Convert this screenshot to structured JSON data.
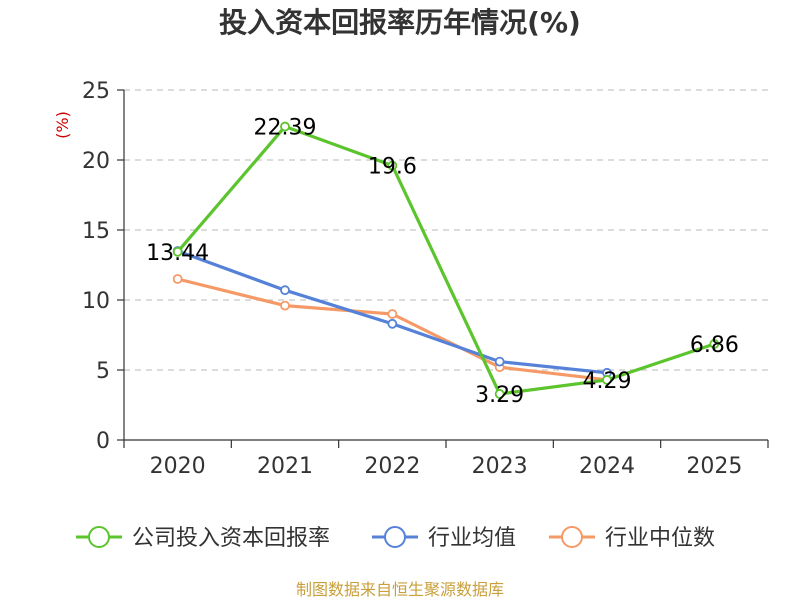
{
  "chart_data": {
    "type": "line",
    "title": "投入资本回报率历年情况(%)",
    "ylabel": "(%)",
    "xlabel": "",
    "categories": [
      "2020",
      "2021",
      "2022",
      "2023",
      "2024",
      "2025"
    ],
    "ylim": [
      0,
      25
    ],
    "yticks": [
      0,
      5,
      10,
      15,
      20,
      25
    ],
    "grid": true,
    "legend_position": "bottom",
    "series": [
      {
        "name": "公司投入资本回报率",
        "color": "#5cc42d",
        "values": [
          13.44,
          22.39,
          19.6,
          3.29,
          4.29,
          6.86
        ],
        "labels": [
          "13.44",
          "22.39",
          "19.6",
          "3.29",
          "4.29",
          "6.86"
        ]
      },
      {
        "name": "行业均值",
        "color": "#5582d8",
        "values": [
          13.5,
          10.7,
          8.3,
          5.6,
          4.8,
          null
        ]
      },
      {
        "name": "行业中位数",
        "color": "#f59a66",
        "values": [
          11.5,
          9.6,
          9.0,
          5.2,
          4.3,
          null
        ]
      }
    ],
    "source": "制图数据来自恒生聚源数据库"
  }
}
